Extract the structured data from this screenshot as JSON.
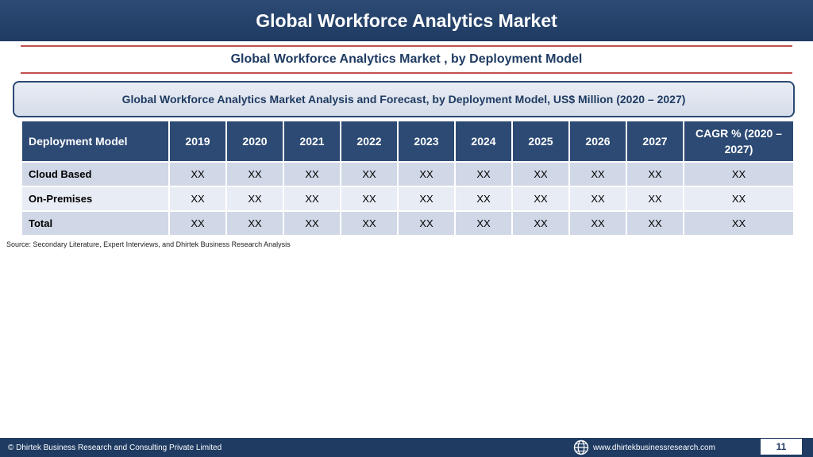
{
  "header": {
    "title": "Global Workforce Analytics Market"
  },
  "subtitle": "Global Workforce Analytics Market , by Deployment Model",
  "caption": "Global Workforce Analytics Market  Analysis and Forecast, by Deployment Model, US$ Million (2020 – 2027)",
  "table": {
    "columns": [
      "Deployment Model",
      "2019",
      "2020",
      "2021",
      "2022",
      "2023",
      "2024",
      "2025",
      "2026",
      "2027",
      "CAGR % (2020 – 2027)"
    ],
    "rows": [
      [
        "Cloud Based",
        "XX",
        "XX",
        "XX",
        "XX",
        "XX",
        "XX",
        "XX",
        "XX",
        "XX",
        "XX"
      ],
      [
        "On-Premises",
        "XX",
        "XX",
        "XX",
        "XX",
        "XX",
        "XX",
        "XX",
        "XX",
        "XX",
        "XX"
      ],
      [
        "Total",
        "XX",
        "XX",
        "XX",
        "XX",
        "XX",
        "XX",
        "XX",
        "XX",
        "XX",
        "XX"
      ]
    ]
  },
  "source": "Source: Secondary Literature, Expert Interviews, and Dhirtek Business Research Analysis",
  "footer": {
    "copyright": "© Dhirtek Business Research and Consulting Private Limited",
    "website": "www.dhirtekbusinessresearch.com",
    "page_number": "11",
    "globe_icon": "globe-icon"
  },
  "colors": {
    "banner": "#1f3b62",
    "accent_line": "#c0504d",
    "header_cell": "#2c4a74",
    "row_band_dark": "#d0d7e6",
    "row_band_light": "#e8ecf4"
  }
}
